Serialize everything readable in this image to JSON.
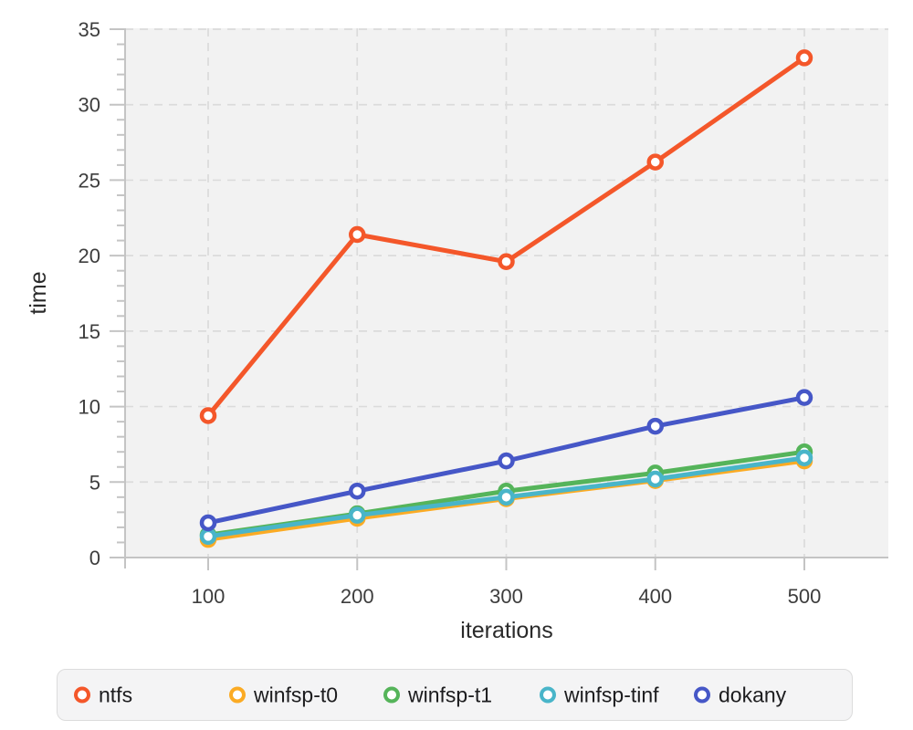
{
  "colors": {
    "figure_bg": "#ffffff",
    "plot_bg": "#f2f2f2",
    "grid": "#dbdbdb",
    "axis": "#c4c4c4",
    "tick_label": "#3d3d3d",
    "axis_label": "#2a2a2a",
    "legend_bg": "#f4f4f5",
    "legend_border": "#dcdcdc",
    "marker_fill": "#ffffff"
  },
  "chart_data": {
    "type": "line",
    "title": "",
    "xlabel": "iterations",
    "ylabel": "time",
    "marker": "open-circle",
    "grid": true,
    "legend_position": "bottom",
    "x": [
      100,
      200,
      300,
      400,
      500
    ],
    "xticks": [
      100,
      200,
      300,
      400,
      500
    ],
    "yticks": [
      0,
      5,
      10,
      15,
      20,
      25,
      30,
      35
    ],
    "y_minor_tick_step": 1,
    "ylim": [
      0,
      35
    ],
    "series": [
      {
        "name": "ntfs",
        "color": "#f4572a",
        "values": [
          9.4,
          21.4,
          19.6,
          26.2,
          33.1
        ]
      },
      {
        "name": "winfsp-t0",
        "color": "#fbab24",
        "values": [
          1.2,
          2.6,
          3.9,
          5.1,
          6.4
        ]
      },
      {
        "name": "winfsp-t1",
        "color": "#55b45a",
        "values": [
          1.5,
          2.9,
          4.4,
          5.6,
          7.0
        ]
      },
      {
        "name": "winfsp-tinf",
        "color": "#49b5c9",
        "values": [
          1.4,
          2.8,
          4.0,
          5.2,
          6.6
        ]
      },
      {
        "name": "dokany",
        "color": "#4657c7",
        "values": [
          2.3,
          4.4,
          6.4,
          8.7,
          10.6
        ]
      }
    ]
  }
}
